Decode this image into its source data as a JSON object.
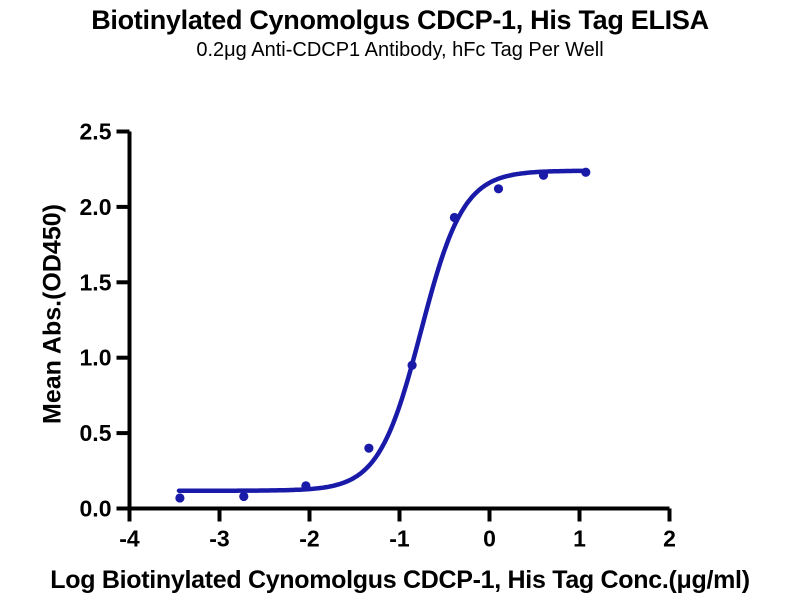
{
  "chart_data": {
    "type": "scatter",
    "title": "Biotinylated Cynomolgus CDCP-1, His Tag ELISA",
    "subtitle": "0.2μg Anti-CDCP1 Antibody, hFc Tag Per Well",
    "xlabel": "Log Biotinylated Cynomolgus CDCP-1, His Tag Conc.(μg/ml)",
    "ylabel": "Mean Abs.(OD450)",
    "xlim": [
      -4,
      2
    ],
    "ylim": [
      0,
      2.5
    ],
    "x_ticks": [
      -4,
      -3,
      -2,
      -1,
      0,
      1,
      2
    ],
    "x_tick_labels": [
      "-4",
      "-3",
      "-2",
      "-1",
      "0",
      "1",
      "2"
    ],
    "y_ticks": [
      0,
      0.5,
      1,
      1.5,
      2,
      2.5
    ],
    "y_tick_labels": [
      "0.0",
      "0.5",
      "1.0",
      "1.5",
      "2.0",
      "2.5"
    ],
    "grid": false,
    "legend": null,
    "colors": {
      "series": "#1a1aa8",
      "axis": "#000000",
      "background": "#ffffff"
    },
    "series": [
      {
        "name": "Biotinylated Cynomolgus CDCP-1, His Tag",
        "points": [
          {
            "x": -3.44,
            "y": 0.07
          },
          {
            "x": -2.73,
            "y": 0.08
          },
          {
            "x": -2.04,
            "y": 0.15
          },
          {
            "x": -1.34,
            "y": 0.4
          },
          {
            "x": -0.86,
            "y": 0.95
          },
          {
            "x": -0.39,
            "y": 1.93
          },
          {
            "x": 0.1,
            "y": 2.12
          },
          {
            "x": 0.6,
            "y": 2.21
          },
          {
            "x": 1.07,
            "y": 2.23
          }
        ]
      }
    ],
    "fit_curve": {
      "model": "four_parameter_logistic",
      "bottom": 0.118,
      "top": 2.24,
      "log_ec50": -0.76,
      "hill_slope": 1.85,
      "x_start": -3.45,
      "x_end": 1.07
    }
  }
}
